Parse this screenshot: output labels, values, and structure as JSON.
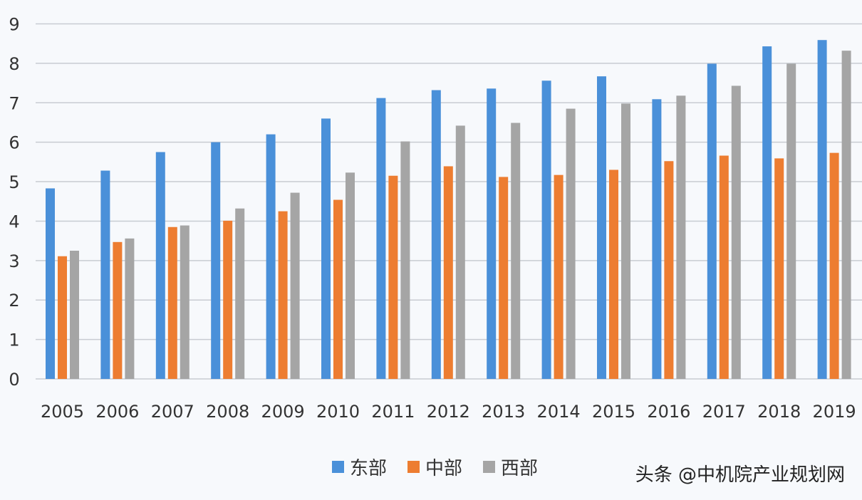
{
  "chart_data": {
    "type": "bar",
    "title": "",
    "xlabel": "",
    "ylabel": "",
    "ylim": [
      0,
      9
    ],
    "yticks": [
      "0",
      "1",
      "2",
      "3",
      "4",
      "5",
      "6",
      "7",
      "8",
      "9"
    ],
    "grid": true,
    "legend_position": "bottom",
    "categories": [
      "2005",
      "2006",
      "2007",
      "2008",
      "2009",
      "2010",
      "2011",
      "2012",
      "2013",
      "2014",
      "2015",
      "2016",
      "2017",
      "2018",
      "2019"
    ],
    "series": [
      {
        "name": "东部",
        "color": "#4a90d9",
        "values": [
          4.83,
          5.28,
          5.75,
          6.0,
          6.2,
          6.6,
          7.12,
          7.32,
          7.36,
          7.56,
          7.67,
          7.09,
          7.99,
          8.43,
          8.59
        ]
      },
      {
        "name": "中部",
        "color": "#ed7d31",
        "values": [
          3.11,
          3.47,
          3.85,
          4.01,
          4.25,
          4.54,
          5.15,
          5.39,
          5.12,
          5.17,
          5.3,
          5.52,
          5.66,
          5.59,
          5.73
        ]
      },
      {
        "name": "西部",
        "color": "#a5a5a5",
        "values": [
          3.25,
          3.56,
          3.89,
          4.32,
          4.72,
          5.23,
          6.02,
          6.42,
          6.49,
          6.85,
          6.98,
          7.18,
          7.43,
          7.99,
          8.32
        ]
      }
    ]
  },
  "watermark": "头条 @中机院产业规划网"
}
